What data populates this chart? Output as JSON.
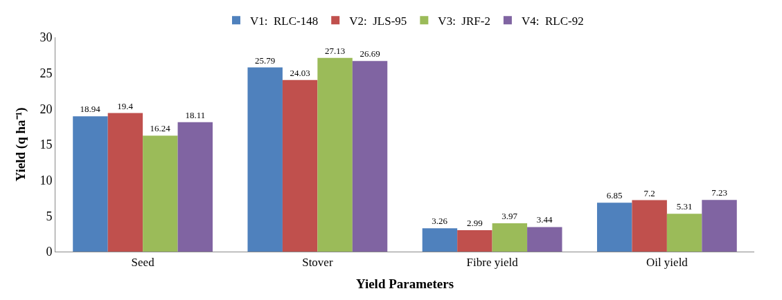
{
  "chart_data": {
    "type": "bar",
    "xlabel": "Yield Parameters",
    "ylabel": "Yield (q ha⁻¹)",
    "categories": [
      "Seed",
      "Stover",
      "Fibre yield",
      "Oil yield"
    ],
    "series": [
      {
        "name": "V1:  RLC-148",
        "color": "#4f81bd",
        "values": [
          18.94,
          25.79,
          3.26,
          6.85
        ]
      },
      {
        "name": "V2:  JLS-95",
        "color": "#c0504d",
        "values": [
          19.4,
          24.03,
          2.99,
          7.2
        ]
      },
      {
        "name": "V3:  JRF-2",
        "color": "#9bbb59",
        "values": [
          16.24,
          27.13,
          3.97,
          5.31
        ]
      },
      {
        "name": "V4:  RLC-92",
        "color": "#8064a2",
        "values": [
          18.11,
          26.69,
          3.44,
          7.23
        ]
      }
    ],
    "ylim": [
      0,
      30
    ],
    "yticks": [
      0,
      5,
      10,
      15,
      20,
      25,
      30
    ],
    "data_labels": true,
    "legend": "top"
  }
}
